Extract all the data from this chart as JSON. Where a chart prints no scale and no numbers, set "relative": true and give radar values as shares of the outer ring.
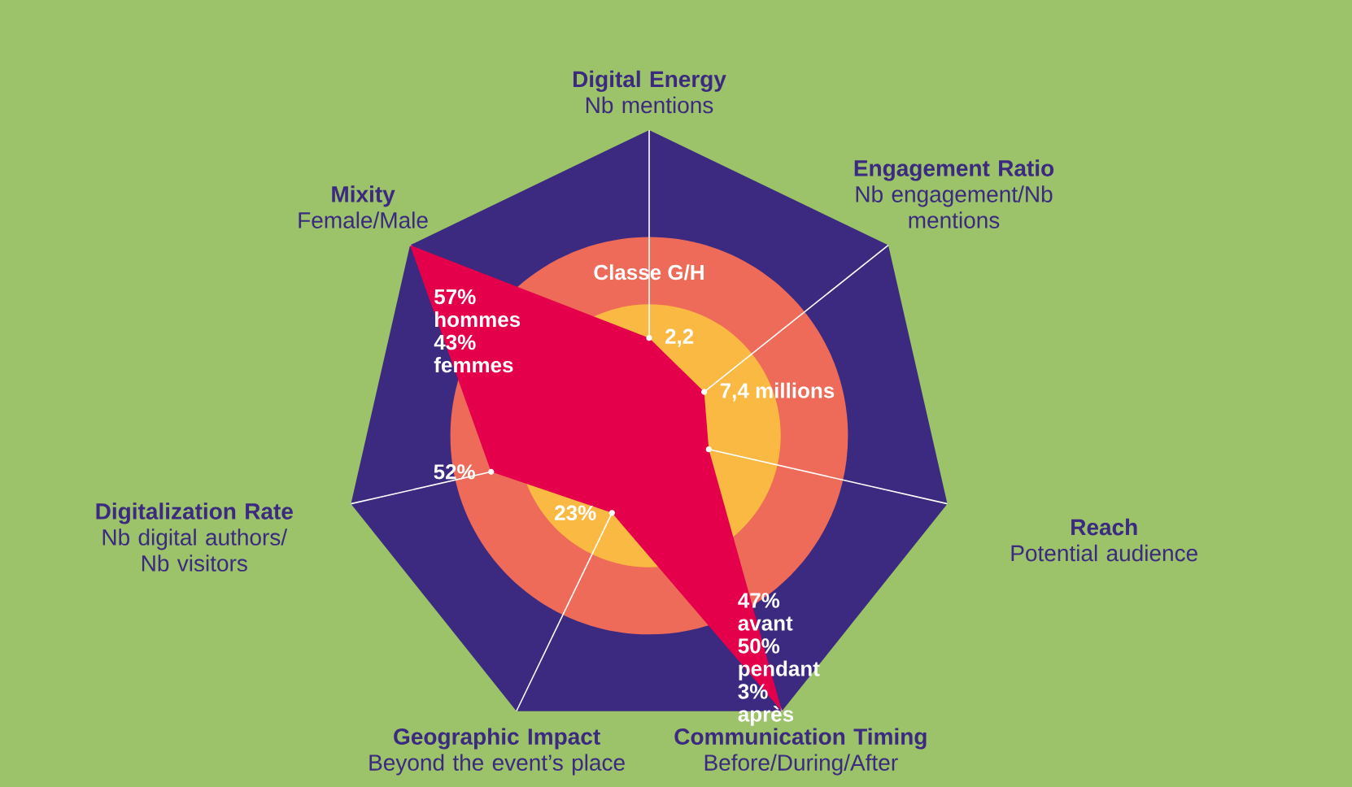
{
  "chart_data": {
    "type": "radar",
    "relative": true,
    "categories": [
      "Digital Energy",
      "Engagement Ratio",
      "Reach",
      "Communication Timing",
      "Geographic Impact",
      "Digitalization Rate",
      "Mixity"
    ],
    "series": [
      {
        "color": "#e4004b",
        "values": [
          0.32,
          0.23,
          0.2,
          1,
          0.28,
          0.53,
          1
        ]
      }
    ],
    "annotations": [
      "Nb mentions",
      "Nb engagement/Nb mentions",
      "Potential audience",
      "Before/During/After",
      "Beyond the event’s place",
      "Nb digital authors/ Nb visitors",
      "Female/Male",
      "Classe G/H",
      {
        "text": "2,2",
        "x": "Digital Energy"
      },
      {
        "text": "7,4 millions",
        "x": "Engagement Ratio"
      },
      {
        "text": "47% avant 50% pendant 3% après",
        "x": "Communication Timing"
      },
      {
        "text": "23%",
        "x": "Geographic Impact"
      },
      {
        "text": "52%",
        "x": "Digitalization Rate"
      },
      {
        "text": "57% hommes 43% femmes",
        "x": "Mixity"
      }
    ]
  }
}
